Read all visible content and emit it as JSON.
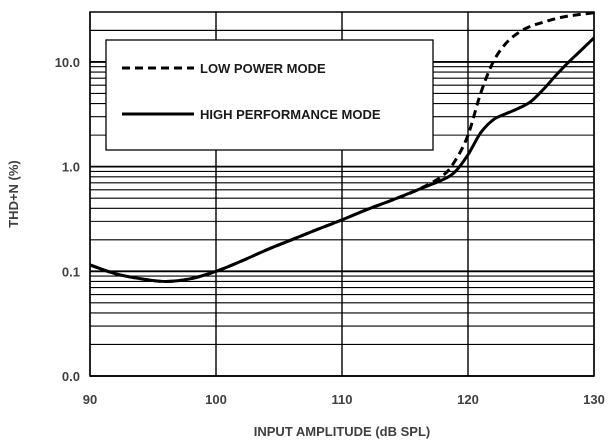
{
  "chart_data": {
    "type": "line",
    "xlabel": "INPUT AMPLITUDE (dB SPL)",
    "ylabel": "THD+N  (%)",
    "xlim": [
      90,
      130
    ],
    "ylim": [
      0.01,
      30
    ],
    "y_scale": "log",
    "x_ticks": [
      90,
      100,
      110,
      120,
      130
    ],
    "x_tick_labels": [
      "90",
      "100",
      "110",
      "120",
      "130"
    ],
    "y_ticks": [
      0.01,
      0.1,
      1,
      10
    ],
    "y_tick_labels": [
      "0.0",
      "0.1",
      "1.0",
      "10.0"
    ],
    "grid": true,
    "legend_position": "top-left",
    "series": [
      {
        "name": "LOW POWER MODE",
        "style": "dashed",
        "color": "#000000",
        "x": [
          90,
          92,
          94,
          96,
          98,
          100,
          102,
          104,
          106,
          108,
          110,
          112,
          114,
          116,
          118,
          119,
          120,
          121,
          122,
          123,
          124,
          125,
          126,
          127,
          128,
          129,
          130
        ],
        "y": [
          0.115,
          0.095,
          0.085,
          0.08,
          0.085,
          0.1,
          0.125,
          0.16,
          0.2,
          0.25,
          0.31,
          0.39,
          0.48,
          0.6,
          0.82,
          1.15,
          2.0,
          5.0,
          10.0,
          15.0,
          19.0,
          22.0,
          24.0,
          26.0,
          27.5,
          28.5,
          29.5
        ]
      },
      {
        "name": "HIGH PERFORMANCE MODE",
        "style": "solid",
        "color": "#000000",
        "x": [
          90,
          92,
          94,
          96,
          98,
          100,
          102,
          104,
          106,
          108,
          110,
          112,
          114,
          116,
          118,
          119,
          120,
          121,
          122,
          123,
          124,
          125,
          126,
          127,
          128,
          129,
          130
        ],
        "y": [
          0.115,
          0.095,
          0.085,
          0.08,
          0.085,
          0.1,
          0.125,
          0.16,
          0.2,
          0.25,
          0.31,
          0.39,
          0.48,
          0.6,
          0.75,
          0.9,
          1.3,
          2.1,
          2.8,
          3.2,
          3.6,
          4.2,
          5.5,
          7.5,
          10.0,
          13.0,
          17.0
        ]
      }
    ]
  }
}
